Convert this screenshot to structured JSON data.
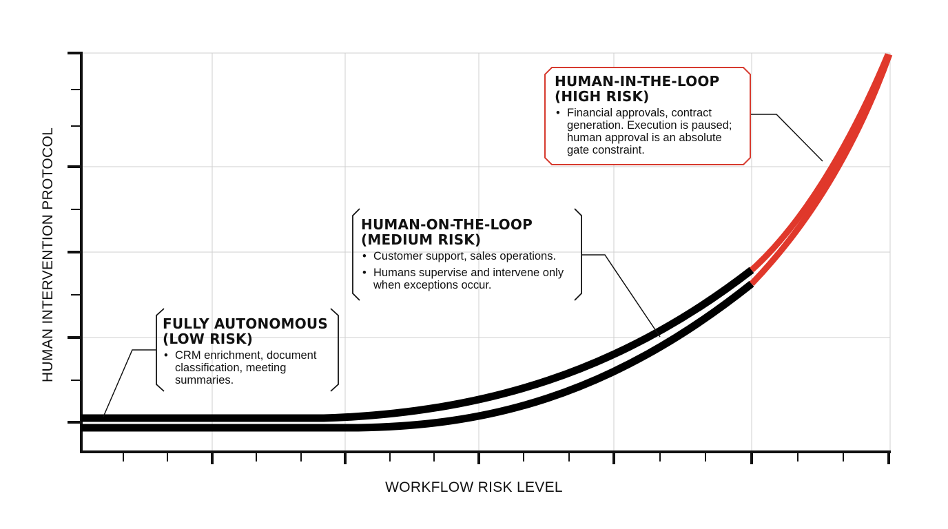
{
  "axes": {
    "x_label": "WORKFLOW RISK LEVEL",
    "y_label": "HUMAN INTERVENTION PROTOCOL"
  },
  "zones": [
    {
      "id": "low",
      "title_line1": "FULLY AUTONOMOUS",
      "title_line2": "(LOW RISK)",
      "bullets": [
        "CRM enrichment, document classification, meeting summaries."
      ]
    },
    {
      "id": "medium",
      "title_line1": "HUMAN-ON-THE-LOOP",
      "title_line2": "(MEDIUM RISK)",
      "bullets": [
        "Customer support, sales operations.",
        "Humans supervise and intervene only when exceptions occur."
      ]
    },
    {
      "id": "high",
      "title_line1": "HUMAN-IN-THE-LOOP",
      "title_line2": "(HIGH RISK)",
      "bullets": [
        "Financial approvals, contract generation. Execution is paused; human approval is an absolute gate constraint."
      ]
    }
  ],
  "colors": {
    "curve": "#000000",
    "high_risk": "#e0382b",
    "grid": "#cfcfcf",
    "axis": "#111111"
  }
}
